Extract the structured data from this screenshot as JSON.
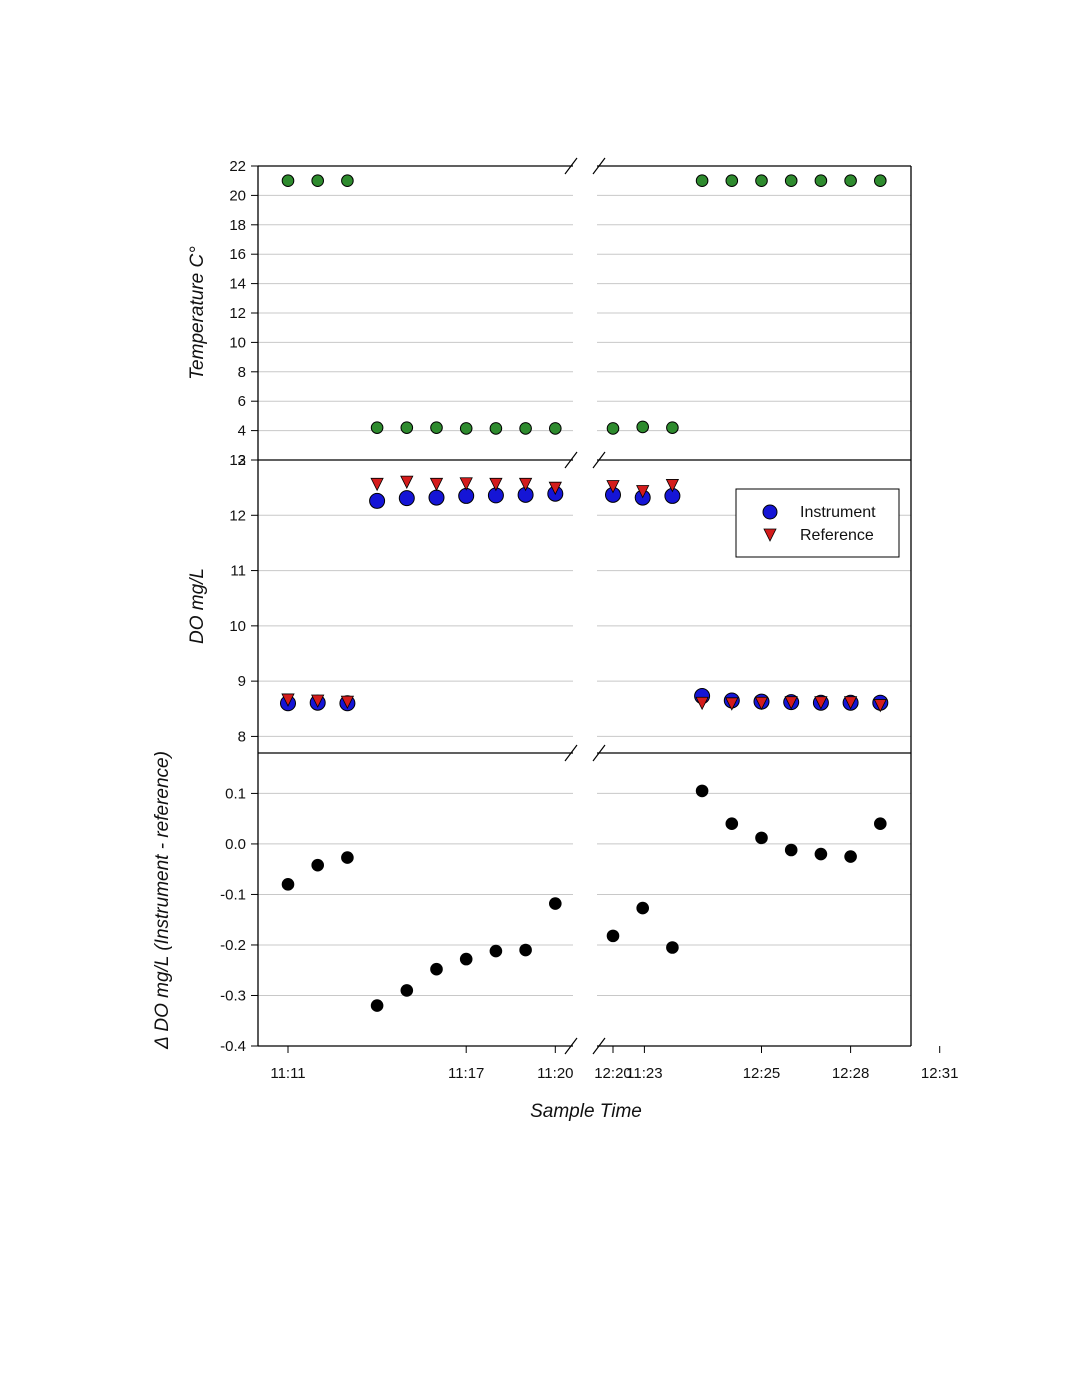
{
  "chart_data": {
    "type": "scatter",
    "x_label": "Sample Time",
    "x_tick_labels": [
      "11:11",
      "11:17",
      "11:20",
      "11:23",
      "12:20",
      "12:25",
      "12:28",
      "12:31"
    ],
    "x_axis_break": "between 11:23 and 12:20",
    "segments": [
      {
        "times": [
          "11:11",
          "11:12",
          "11:13",
          "11:17",
          "11:18",
          "11:19",
          "11:20",
          "11:21",
          "11:22",
          "11:23"
        ]
      },
      {
        "times": [
          "12:20",
          "12:21",
          "12:22",
          "12:25",
          "12:26",
          "12:27",
          "12:28",
          "12:29",
          "12:30",
          "12:31"
        ]
      }
    ],
    "panels": [
      {
        "id": "temperature",
        "ylabel": "Temperature C°",
        "ylim": [
          2,
          22
        ],
        "yticks": [
          2,
          4,
          6,
          8,
          10,
          12,
          14,
          16,
          18,
          20,
          22
        ],
        "grid": true,
        "series": [
          {
            "marker": "circle",
            "color": "#2e8b2e",
            "values": [
              [
                21.0,
                21.0,
                21.0,
                4.2,
                4.2,
                4.2,
                4.15,
                4.15,
                4.15,
                4.15
              ],
              [
                4.15,
                4.25,
                4.2,
                21.0,
                21.0,
                21.0,
                21.0,
                21.0,
                21.0,
                21.0
              ]
            ]
          }
        ]
      },
      {
        "id": "do",
        "ylabel": "DO mg/L",
        "ylim": [
          7.7,
          13.0
        ],
        "yticks": [
          8,
          9,
          10,
          11,
          12,
          13
        ],
        "grid": true,
        "legend_position": "top-right",
        "series": [
          {
            "name": "Instrument",
            "marker": "circle",
            "color": "#1515d6",
            "values": [
              [
                8.6,
                8.61,
                8.6,
                12.26,
                12.31,
                12.32,
                12.35,
                12.36,
                12.37,
                12.39
              ],
              [
                12.37,
                12.32,
                12.35,
                8.73,
                8.65,
                8.63,
                8.62,
                8.61,
                8.61,
                8.61
              ]
            ]
          },
          {
            "name": "Reference",
            "marker": "triangle-down",
            "color": "#d41c1c",
            "values": [
              [
                8.66,
                8.64,
                8.62,
                12.56,
                12.6,
                12.56,
                12.57,
                12.56,
                12.56,
                12.49
              ],
              [
                12.52,
                12.43,
                12.54,
                8.6,
                8.59,
                8.6,
                8.61,
                8.61,
                8.61,
                8.56
              ]
            ]
          }
        ]
      },
      {
        "id": "delta",
        "ylabel": "Δ DO mg/L (Instrument - reference)",
        "ylim": [
          -0.4,
          0.18
        ],
        "yticks": [
          -0.4,
          -0.3,
          -0.2,
          -0.1,
          0.0,
          0.1
        ],
        "ytick_labels": [
          "-0.4",
          "-0.3",
          "-0.2",
          "-0.1",
          "0.0",
          "0.1"
        ],
        "grid": true,
        "series": [
          {
            "marker": "circle",
            "color": "#000000",
            "values": [
              [
                -0.08,
                -0.042,
                -0.027,
                -0.32,
                -0.29,
                -0.248,
                -0.228,
                -0.212,
                -0.21,
                -0.118
              ],
              [
                -0.182,
                -0.127,
                -0.205,
                0.105,
                0.04,
                0.012,
                -0.012,
                -0.02,
                -0.025,
                0.04
              ]
            ]
          }
        ]
      }
    ]
  }
}
